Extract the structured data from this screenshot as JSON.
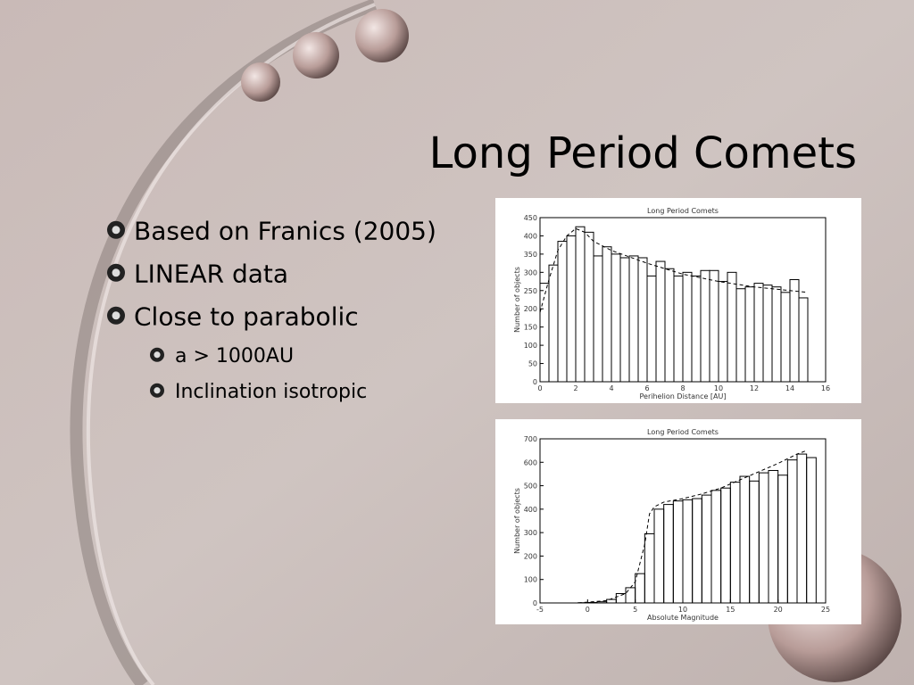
{
  "slide": {
    "title": "Long Period Comets",
    "bullets": [
      {
        "text": "Based on Franics (2005)",
        "level": 1
      },
      {
        "text": "LINEAR data",
        "level": 1
      },
      {
        "text": "Close to parabolic",
        "level": 1
      },
      {
        "text": "a > 1000AU",
        "level": 2
      },
      {
        "text": "Inclination isotropic",
        "level": 2
      }
    ]
  },
  "chart_data": [
    {
      "type": "histogram",
      "title": "Long Period Comets",
      "x_label": "Perihelion Distance [AU]",
      "y_label": "Number of objects",
      "bins": [
        0,
        0.5,
        1,
        1.5,
        2,
        2.5,
        3,
        3.5,
        4,
        4.5,
        5,
        5.5,
        6,
        6.5,
        7,
        7.5,
        8,
        8.5,
        9,
        9.5,
        10,
        10.5,
        11,
        11.5,
        12,
        12.5,
        13,
        13.5,
        14,
        14.5,
        15
      ],
      "values": [
        270,
        320,
        385,
        400,
        425,
        410,
        345,
        370,
        350,
        340,
        345,
        340,
        290,
        330,
        310,
        290,
        300,
        290,
        305,
        305,
        275,
        300,
        255,
        260,
        270,
        265,
        260,
        245,
        280,
        230
      ],
      "fit": {
        "x": [
          0,
          0.5,
          1,
          1.5,
          2,
          2.5,
          3,
          4,
          6,
          8,
          10,
          12,
          14,
          15
        ],
        "y": [
          190,
          280,
          360,
          400,
          420,
          410,
          385,
          360,
          325,
          295,
          275,
          260,
          250,
          245
        ]
      },
      "xlim": [
        0,
        16
      ],
      "ylim": [
        0,
        450
      ],
      "xticks": [
        0,
        2,
        4,
        6,
        8,
        10,
        12,
        14,
        16
      ],
      "yticks": [
        0,
        50,
        100,
        150,
        200,
        250,
        300,
        350,
        400,
        450
      ]
    },
    {
      "type": "histogram",
      "title": "Long Period Comets",
      "x_label": "Absolute Magnitude",
      "y_label": "Number of objects",
      "bins": [
        -1,
        0,
        1,
        2,
        3,
        4,
        5,
        6,
        7,
        8,
        9,
        10,
        11,
        12,
        13,
        14,
        15,
        16,
        17,
        18,
        19,
        20,
        21,
        22,
        23,
        24
      ],
      "values": [
        1,
        2,
        5,
        15,
        40,
        65,
        125,
        295,
        400,
        420,
        435,
        440,
        445,
        460,
        480,
        490,
        515,
        540,
        520,
        555,
        565,
        545,
        610,
        635,
        620
      ],
      "fit": {
        "x": [
          -1,
          2,
          4,
          5,
          6,
          6.5,
          7,
          8,
          10,
          12,
          14,
          16,
          18,
          20,
          22,
          23
        ],
        "y": [
          0,
          10,
          40,
          90,
          250,
          380,
          410,
          430,
          445,
          465,
          490,
          525,
          560,
          595,
          635,
          650
        ]
      },
      "xlim": [
        -5,
        25
      ],
      "ylim": [
        0,
        700
      ],
      "xticks": [
        -5,
        0,
        5,
        10,
        15,
        20,
        25
      ],
      "yticks": [
        0,
        100,
        200,
        300,
        400,
        500,
        600,
        700
      ]
    }
  ]
}
